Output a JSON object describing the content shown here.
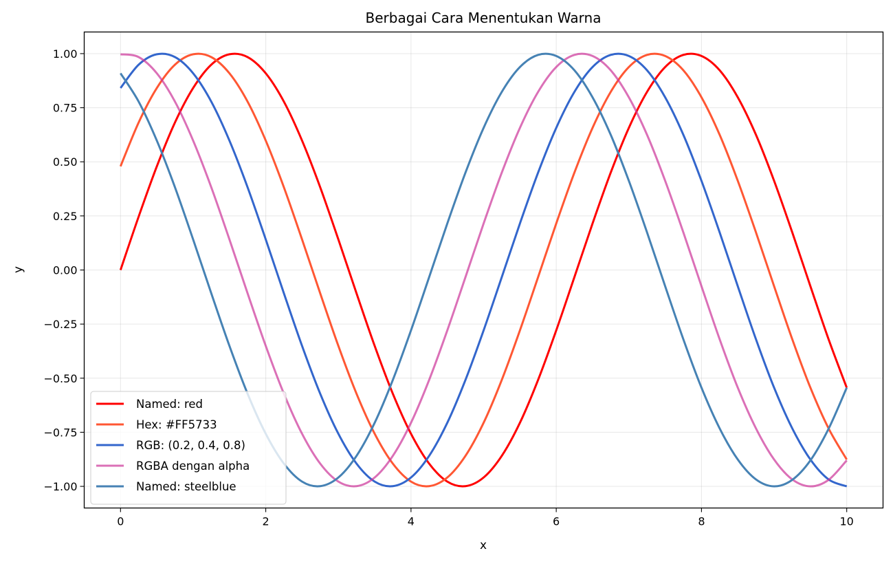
{
  "chart_data": {
    "type": "line",
    "title": "Berbagai Cara Menentukan Warna",
    "xlabel": "x",
    "ylabel": "y",
    "xlim": [
      -0.5,
      10.5
    ],
    "ylim": [
      -1.1,
      1.1
    ],
    "grid": true,
    "legend_position": "lower-left",
    "x_ticks": [
      0,
      2,
      4,
      6,
      8,
      10
    ],
    "x_tick_labels": [
      "0",
      "2",
      "4",
      "6",
      "8",
      "10"
    ],
    "y_ticks": [
      1.0,
      0.75,
      0.5,
      0.25,
      0.0,
      -0.25,
      -0.5,
      -0.75,
      -1.0
    ],
    "y_tick_labels": [
      "1.00",
      "0.75",
      "0.50",
      "0.25",
      "0.00",
      "−0.25",
      "−0.50",
      "−0.75",
      "−1.00"
    ],
    "x": [
      0,
      0.25,
      0.5,
      0.75,
      1,
      1.25,
      1.5,
      1.75,
      2,
      2.25,
      2.5,
      2.75,
      3,
      3.25,
      3.5,
      3.75,
      4,
      4.25,
      4.5,
      4.75,
      5,
      5.25,
      5.5,
      5.75,
      6,
      6.25,
      6.5,
      6.75,
      7,
      7.25,
      7.5,
      7.75,
      8,
      8.25,
      8.5,
      8.75,
      9,
      9.25,
      9.5,
      9.75,
      10
    ],
    "series": [
      {
        "name": "Named: red",
        "color": "#ff0000",
        "values": [
          0.0,
          0.247,
          0.479,
          0.682,
          0.841,
          0.949,
          0.997,
          0.984,
          0.909,
          0.778,
          0.598,
          0.382,
          0.141,
          -0.108,
          -0.351,
          -0.572,
          -0.757,
          -0.895,
          -0.978,
          -0.999,
          -0.959,
          -0.859,
          -0.706,
          -0.508,
          -0.279,
          -0.033,
          0.215,
          0.45,
          0.657,
          0.823,
          0.938,
          0.994,
          0.989,
          0.923,
          0.798,
          0.625,
          0.412,
          0.174,
          -0.075,
          -0.32,
          -0.544
        ]
      },
      {
        "name": "Hex: #FF5733",
        "color": "#ff5733",
        "values": [
          0.479,
          0.682,
          0.841,
          0.949,
          0.997,
          0.984,
          0.909,
          0.778,
          0.598,
          0.382,
          0.141,
          -0.108,
          -0.351,
          -0.572,
          -0.757,
          -0.895,
          -0.978,
          -0.999,
          -0.959,
          -0.859,
          -0.706,
          -0.508,
          -0.279,
          -0.033,
          0.215,
          0.45,
          0.657,
          0.823,
          0.938,
          0.994,
          0.989,
          0.923,
          0.798,
          0.625,
          0.412,
          0.174,
          -0.075,
          -0.32,
          -0.544,
          -0.732,
          -0.876
        ]
      },
      {
        "name": "RGB: (0.2, 0.4, 0.8)",
        "color": "#3366cc",
        "values": [
          0.841,
          0.949,
          0.997,
          0.984,
          0.909,
          0.778,
          0.598,
          0.382,
          0.141,
          -0.108,
          -0.351,
          -0.572,
          -0.757,
          -0.895,
          -0.978,
          -0.999,
          -0.959,
          -0.859,
          -0.706,
          -0.508,
          -0.279,
          -0.033,
          0.215,
          0.45,
          0.657,
          0.823,
          0.938,
          0.994,
          0.989,
          0.923,
          0.798,
          0.625,
          0.412,
          0.174,
          -0.075,
          -0.32,
          -0.544,
          -0.732,
          -0.876,
          -0.968,
          -1.0
        ]
      },
      {
        "name": "RGBA dengan alpha",
        "color": "#cc3399",
        "opacity": 0.7,
        "values": [
          0.997,
          0.984,
          0.909,
          0.778,
          0.598,
          0.382,
          0.141,
          -0.108,
          -0.351,
          -0.572,
          -0.757,
          -0.895,
          -0.978,
          -0.999,
          -0.959,
          -0.859,
          -0.706,
          -0.508,
          -0.279,
          -0.033,
          0.215,
          0.45,
          0.657,
          0.823,
          0.938,
          0.994,
          0.989,
          0.923,
          0.798,
          0.625,
          0.412,
          0.174,
          -0.075,
          -0.32,
          -0.544,
          -0.732,
          -0.876,
          -0.968,
          -1.0,
          -0.97,
          -0.88
        ]
      },
      {
        "name": "Named: steelblue",
        "color": "#4682b4",
        "values": [
          0.909,
          0.778,
          0.598,
          0.382,
          0.141,
          -0.108,
          -0.351,
          -0.572,
          -0.757,
          -0.895,
          -0.978,
          -0.999,
          -0.959,
          -0.859,
          -0.706,
          -0.508,
          -0.279,
          -0.033,
          0.215,
          0.45,
          0.657,
          0.823,
          0.938,
          0.994,
          0.989,
          0.923,
          0.798,
          0.625,
          0.412,
          0.174,
          -0.075,
          -0.32,
          -0.544,
          -0.732,
          -0.876,
          -0.968,
          -1.0,
          -0.97,
          -0.88,
          -0.734,
          -0.544
        ]
      }
    ]
  }
}
